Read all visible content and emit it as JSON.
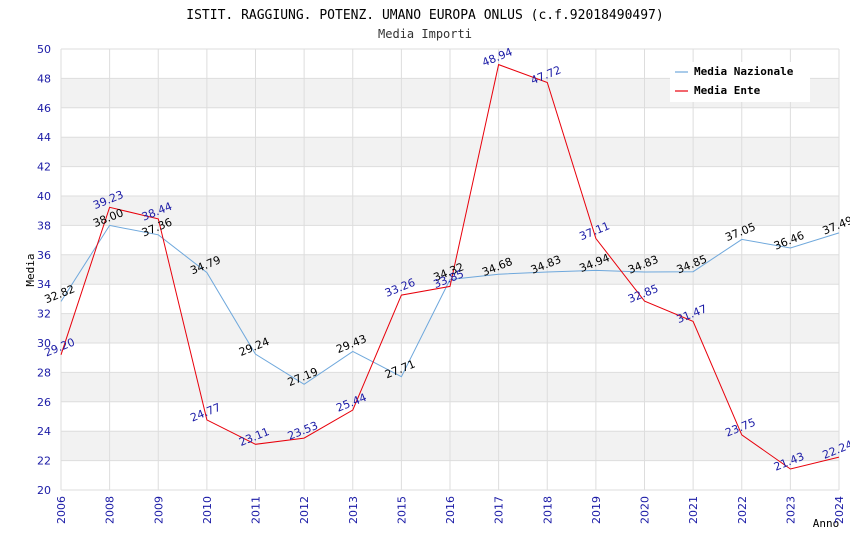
{
  "chart_data": {
    "type": "line",
    "title": "ISTIT. RAGGIUNG. POTENZ. UMANO EUROPA ONLUS (c.f.92018490497)",
    "subtitle": "Media Importi",
    "xlabel": "Anno",
    "ylabel": "Media",
    "ylim": [
      20,
      50
    ],
    "yticks": [
      "20",
      "22",
      "24",
      "26",
      "28",
      "30",
      "32",
      "34",
      "36",
      "38",
      "40",
      "42",
      "44",
      "46",
      "48",
      "50"
    ],
    "categories": [
      "2006",
      "2008",
      "2009",
      "2010",
      "2011",
      "2012",
      "2013",
      "2015",
      "2016",
      "2017",
      "2018",
      "2019",
      "2020",
      "2021",
      "2022",
      "2023",
      "2024"
    ],
    "series": [
      {
        "name": "Media Nazionale",
        "color": "#6fa8dc",
        "label_color": "#000000",
        "values": [
          32.82,
          38.0,
          37.36,
          34.79,
          29.24,
          27.19,
          29.43,
          27.71,
          34.32,
          34.68,
          34.83,
          34.94,
          34.83,
          34.85,
          37.05,
          36.46,
          37.49
        ],
        "labels": [
          "32.82",
          "38.00",
          "37.36",
          "34.79",
          "29.24",
          "27.19",
          "29.43",
          "27.71",
          "34.32",
          "34.68",
          "34.83",
          "34.94",
          "34.83",
          "34.85",
          "37.05",
          "36.46",
          "37.49"
        ]
      },
      {
        "name": "Media Ente",
        "color": "#e8000b",
        "label_color": "#1a1aa6",
        "values": [
          29.2,
          39.23,
          38.44,
          24.77,
          23.11,
          23.53,
          25.44,
          33.26,
          33.85,
          48.94,
          47.72,
          37.11,
          32.85,
          31.47,
          23.75,
          21.43,
          22.24
        ],
        "labels": [
          "29.20",
          "39.23",
          "38.44",
          "24.77",
          "23.11",
          "23.53",
          "25.44",
          "33.26",
          "33.85",
          "48.94",
          "47.72",
          "37.11",
          "32.85",
          "31.47",
          "23.75",
          "21.43",
          "22.24"
        ]
      }
    ],
    "grid": true,
    "legend_position": "top-right"
  }
}
